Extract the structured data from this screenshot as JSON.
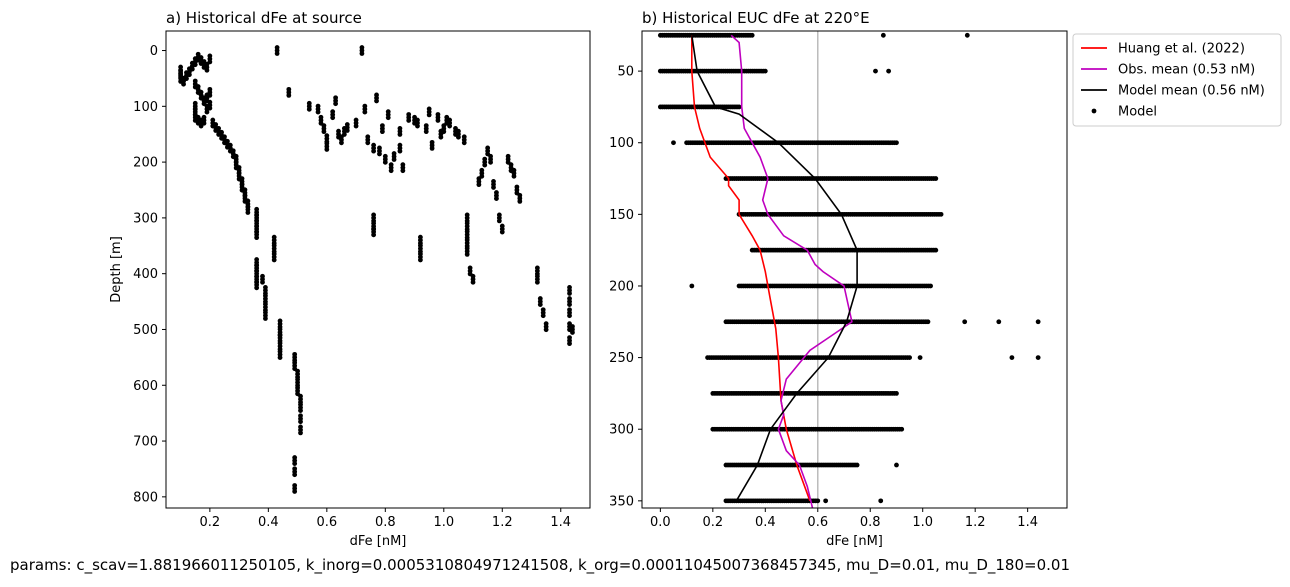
{
  "footer_text": "params: c_scav=1.881966011250105, k_inorg=0.0005310804971241508, k_org=0.00011045007368457345, mu_D=0.01, mu_D_180=0.01",
  "chart_data": [
    {
      "type": "scatter",
      "title": "a) Historical dFe at source",
      "xlabel": "dFe [nM]",
      "ylabel": "Depth [m]",
      "xlim": [
        0.05,
        1.5
      ],
      "ylim": [
        820,
        -35
      ],
      "xticks": [
        0.2,
        0.4,
        0.6,
        0.8,
        1.0,
        1.2,
        1.4
      ],
      "xtick_labels": [
        "0.2",
        "0.4",
        "0.6",
        "0.8",
        "1.0",
        "1.2",
        "1.4"
      ],
      "yticks": [
        0,
        100,
        200,
        300,
        400,
        500,
        600,
        700,
        800
      ],
      "ytick_labels": [
        "0",
        "100",
        "200",
        "300",
        "400",
        "500",
        "600",
        "700",
        "800"
      ],
      "grid": false,
      "series": [
        {
          "color": "#000000",
          "points": [
            [
              0.1,
              35
            ],
            [
              0.1,
              42
            ],
            [
              0.1,
              50
            ],
            [
              0.11,
              55
            ],
            [
              0.12,
              45
            ],
            [
              0.13,
              38
            ],
            [
              0.14,
              28
            ],
            [
              0.15,
              20
            ],
            [
              0.16,
              12
            ],
            [
              0.17,
              18
            ],
            [
              0.18,
              25
            ],
            [
              0.19,
              30
            ],
            [
              0.2,
              15
            ],
            [
              0.15,
              60
            ],
            [
              0.16,
              70
            ],
            [
              0.17,
              80
            ],
            [
              0.18,
              90
            ],
            [
              0.19,
              85
            ],
            [
              0.2,
              75
            ],
            [
              0.15,
              100
            ],
            [
              0.15,
              110
            ],
            [
              0.15,
              120
            ],
            [
              0.16,
              125
            ],
            [
              0.17,
              130
            ],
            [
              0.18,
              125
            ],
            [
              0.19,
              105
            ],
            [
              0.2,
              98
            ],
            [
              0.21,
              130
            ],
            [
              0.22,
              138
            ],
            [
              0.23,
              145
            ],
            [
              0.24,
              152
            ],
            [
              0.25,
              160
            ],
            [
              0.26,
              168
            ],
            [
              0.27,
              175
            ],
            [
              0.28,
              185
            ],
            [
              0.29,
              195
            ],
            [
              0.29,
              205
            ],
            [
              0.3,
              215
            ],
            [
              0.3,
              225
            ],
            [
              0.31,
              235
            ],
            [
              0.31,
              245
            ],
            [
              0.32,
              255
            ],
            [
              0.32,
              265
            ],
            [
              0.33,
              275
            ],
            [
              0.33,
              285
            ],
            [
              0.36,
              290
            ],
            [
              0.36,
              300
            ],
            [
              0.36,
              310
            ],
            [
              0.36,
              320
            ],
            [
              0.36,
              330
            ],
            [
              0.36,
              380
            ],
            [
              0.36,
              390
            ],
            [
              0.36,
              400
            ],
            [
              0.36,
              410
            ],
            [
              0.36,
              420
            ],
            [
              0.38,
              410
            ],
            [
              0.39,
              430
            ],
            [
              0.39,
              445
            ],
            [
              0.39,
              460
            ],
            [
              0.39,
              475
            ],
            [
              0.42,
              340
            ],
            [
              0.42,
              355
            ],
            [
              0.42,
              370
            ],
            [
              0.44,
              490
            ],
            [
              0.44,
              505
            ],
            [
              0.44,
              515
            ],
            [
              0.44,
              530
            ],
            [
              0.44,
              545
            ],
            [
              0.49,
              550
            ],
            [
              0.49,
              565
            ],
            [
              0.5,
              580
            ],
            [
              0.5,
              595
            ],
            [
              0.5,
              610
            ],
            [
              0.51,
              625
            ],
            [
              0.51,
              640
            ],
            [
              0.51,
              660
            ],
            [
              0.51,
              680
            ],
            [
              0.49,
              735
            ],
            [
              0.49,
              755
            ],
            [
              0.49,
              785
            ],
            [
              0.43,
              0
            ],
            [
              0.47,
              75
            ],
            [
              0.54,
              100
            ],
            [
              0.57,
              105
            ],
            [
              0.58,
              125
            ],
            [
              0.59,
              140
            ],
            [
              0.6,
              158
            ],
            [
              0.6,
              172
            ],
            [
              0.62,
              115
            ],
            [
              0.63,
              90
            ],
            [
              0.64,
              150
            ],
            [
              0.65,
              160
            ],
            [
              0.66,
              145
            ],
            [
              0.67,
              138
            ],
            [
              0.7,
              130
            ],
            [
              0.72,
              0
            ],
            [
              0.73,
              105
            ],
            [
              0.74,
              160
            ],
            [
              0.76,
              175
            ],
            [
              0.76,
              300
            ],
            [
              0.76,
              315
            ],
            [
              0.76,
              325
            ],
            [
              0.77,
              85
            ],
            [
              0.78,
              180
            ],
            [
              0.79,
              140
            ],
            [
              0.8,
              195
            ],
            [
              0.81,
              115
            ],
            [
              0.82,
              210
            ],
            [
              0.83,
              190
            ],
            [
              0.85,
              145
            ],
            [
              0.85,
              175
            ],
            [
              0.86,
              210
            ],
            [
              0.88,
              120
            ],
            [
              0.9,
              125
            ],
            [
              0.91,
              130
            ],
            [
              0.92,
              340
            ],
            [
              0.92,
              355
            ],
            [
              0.92,
              370
            ],
            [
              0.94,
              140
            ],
            [
              0.95,
              110
            ],
            [
              0.96,
              170
            ],
            [
              0.98,
              120
            ],
            [
              0.99,
              150
            ],
            [
              1.0,
              140
            ],
            [
              1.01,
              125
            ],
            [
              1.02,
              130
            ],
            [
              1.04,
              145
            ],
            [
              1.05,
              150
            ],
            [
              1.07,
              160
            ],
            [
              1.08,
              300
            ],
            [
              1.08,
              315
            ],
            [
              1.08,
              330
            ],
            [
              1.08,
              345
            ],
            [
              1.08,
              360
            ],
            [
              1.09,
              395
            ],
            [
              1.1,
              410
            ],
            [
              1.12,
              235
            ],
            [
              1.13,
              220
            ],
            [
              1.14,
              200
            ],
            [
              1.15,
              180
            ],
            [
              1.16,
              195
            ],
            [
              1.17,
              240
            ],
            [
              1.18,
              260
            ],
            [
              1.19,
              300
            ],
            [
              1.2,
              320
            ],
            [
              1.22,
              195
            ],
            [
              1.23,
              210
            ],
            [
              1.24,
              220
            ],
            [
              1.25,
              250
            ],
            [
              1.26,
              265
            ],
            [
              1.32,
              395
            ],
            [
              1.32,
              410
            ],
            [
              1.33,
              450
            ],
            [
              1.34,
              470
            ],
            [
              1.35,
              495
            ],
            [
              1.43,
              430
            ],
            [
              1.43,
              450
            ],
            [
              1.43,
              470
            ],
            [
              1.43,
              495
            ],
            [
              1.43,
              520
            ],
            [
              1.44,
              500
            ]
          ]
        }
      ]
    },
    {
      "type": "line+scatter",
      "title": "b) Historical EUC dFe at 220°E",
      "xlabel": "dFe [nM]",
      "xlim": [
        -0.07,
        1.55
      ],
      "ylim": [
        355,
        22
      ],
      "xticks": [
        0.0,
        0.2,
        0.4,
        0.6,
        0.8,
        1.0,
        1.2,
        1.4
      ],
      "xtick_labels": [
        "0.0",
        "0.2",
        "0.4",
        "0.6",
        "0.8",
        "1.0",
        "1.2",
        "1.4"
      ],
      "yticks": [
        50,
        100,
        150,
        200,
        250,
        300,
        350
      ],
      "ytick_labels": [
        "50",
        "100",
        "150",
        "200",
        "250",
        "300",
        "350"
      ],
      "grid": false,
      "vline_x": 0.6,
      "vline_color": "#bbbbbb",
      "legend_position": "outside-top-right",
      "model_depths": [
        25,
        50,
        75,
        100,
        125,
        150,
        175,
        200,
        225,
        250,
        275,
        300,
        325,
        350
      ],
      "model_ranges": [
        [
          0.0,
          0.35
        ],
        [
          0.0,
          0.4
        ],
        [
          0.0,
          0.3
        ],
        [
          0.1,
          0.9
        ],
        [
          0.25,
          1.05
        ],
        [
          0.3,
          1.07
        ],
        [
          0.35,
          1.05
        ],
        [
          0.3,
          1.03
        ],
        [
          0.25,
          1.02
        ],
        [
          0.18,
          0.95
        ],
        [
          0.2,
          0.9
        ],
        [
          0.2,
          0.92
        ],
        [
          0.25,
          0.75
        ],
        [
          0.25,
          0.6
        ]
      ],
      "model_outliers": [
        [
          1.17,
          25
        ],
        [
          0.85,
          25
        ],
        [
          0.82,
          50
        ],
        [
          0.87,
          50
        ],
        [
          0.05,
          100
        ],
        [
          0.12,
          200
        ],
        [
          1.16,
          225
        ],
        [
          1.29,
          225
        ],
        [
          1.44,
          225
        ],
        [
          1.34,
          250
        ],
        [
          1.44,
          250
        ],
        [
          0.99,
          250
        ],
        [
          0.9,
          325
        ],
        [
          0.84,
          350
        ],
        [
          0.63,
          350
        ]
      ],
      "series": [
        {
          "name": "Huang et al. (2022)",
          "color": "#ff0000",
          "points": [
            [
              0.12,
              25
            ],
            [
              0.12,
              50
            ],
            [
              0.13,
              75
            ],
            [
              0.15,
              90
            ],
            [
              0.19,
              110
            ],
            [
              0.26,
              125
            ],
            [
              0.26,
              130
            ],
            [
              0.3,
              140
            ],
            [
              0.3,
              150
            ],
            [
              0.35,
              165
            ],
            [
              0.38,
              175
            ],
            [
              0.4,
              190
            ],
            [
              0.42,
              210
            ],
            [
              0.44,
              230
            ],
            [
              0.45,
              250
            ],
            [
              0.46,
              280
            ],
            [
              0.48,
              300
            ],
            [
              0.52,
              325
            ],
            [
              0.57,
              350
            ]
          ]
        },
        {
          "name": "Obs. mean (0.53 nM)",
          "color": "#bf00bf",
          "points": [
            [
              0.27,
              25
            ],
            [
              0.3,
              30
            ],
            [
              0.31,
              50
            ],
            [
              0.31,
              75
            ],
            [
              0.32,
              90
            ],
            [
              0.38,
              110
            ],
            [
              0.41,
              125
            ],
            [
              0.39,
              140
            ],
            [
              0.41,
              150
            ],
            [
              0.47,
              165
            ],
            [
              0.56,
              175
            ],
            [
              0.59,
              185
            ],
            [
              0.62,
              190
            ],
            [
              0.7,
              200
            ],
            [
              0.73,
              225
            ],
            [
              0.65,
              235
            ],
            [
              0.57,
              245
            ],
            [
              0.48,
              265
            ],
            [
              0.46,
              280
            ],
            [
              0.47,
              290
            ],
            [
              0.45,
              300
            ],
            [
              0.48,
              315
            ],
            [
              0.53,
              325
            ],
            [
              0.56,
              340
            ],
            [
              0.58,
              355
            ]
          ]
        },
        {
          "name": "Model mean (0.56 nM)",
          "color": "#000000",
          "points": [
            [
              0.12,
              25
            ],
            [
              0.14,
              50
            ],
            [
              0.21,
              75
            ],
            [
              0.3,
              80
            ],
            [
              0.45,
              100
            ],
            [
              0.59,
              125
            ],
            [
              0.69,
              150
            ],
            [
              0.75,
              175
            ],
            [
              0.75,
              200
            ],
            [
              0.71,
              225
            ],
            [
              0.64,
              250
            ],
            [
              0.52,
              275
            ],
            [
              0.42,
              300
            ],
            [
              0.37,
              325
            ],
            [
              0.29,
              350
            ]
          ]
        },
        {
          "name": "Model",
          "color": "#000000",
          "marker": "dot"
        }
      ]
    }
  ]
}
